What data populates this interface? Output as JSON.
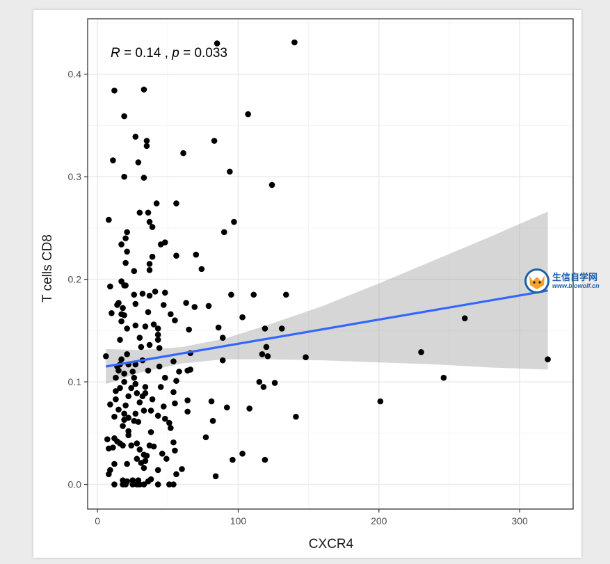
{
  "chart_data": {
    "type": "scatter",
    "xlabel": "CXCR4",
    "ylabel": "T cells CD8",
    "xlim": [
      -7,
      338
    ],
    "ylim": [
      -0.024,
      0.454
    ],
    "x_ticks": [
      0,
      100,
      200,
      300
    ],
    "y_ticks": [
      0.0,
      0.1,
      0.2,
      0.3,
      0.4
    ],
    "x_tick_labels": [
      "0",
      "100",
      "200",
      "300"
    ],
    "y_tick_labels": [
      "0.0",
      "0.1",
      "0.2",
      "0.3",
      "0.4"
    ],
    "grid": true,
    "annotation": {
      "r_symbol": "R",
      "r_text": " = 0.14 , ",
      "p_symbol": "p",
      "p_text": " = 0.033"
    },
    "regression": {
      "x": [
        6,
        320
      ],
      "y": [
        0.115,
        0.189
      ],
      "ci_lower": [
        0.098,
        0.112
      ],
      "ci_upper": [
        0.132,
        0.266
      ],
      "ci_x": [
        6,
        30,
        60,
        90,
        120,
        160,
        200,
        240,
        280,
        320
      ],
      "ci_upper_curve": [
        0.132,
        0.131,
        0.134,
        0.142,
        0.155,
        0.174,
        0.196,
        0.219,
        0.242,
        0.266
      ],
      "ci_lower_curve": [
        0.098,
        0.109,
        0.118,
        0.122,
        0.122,
        0.121,
        0.119,
        0.117,
        0.114,
        0.112
      ]
    },
    "colors": {
      "line": "#3366ff",
      "ribbon": "#999999",
      "point": "#000000",
      "grid_major": "#ebebeb",
      "grid_minor": "#f5f5f5"
    },
    "points": [
      [
        140,
        0.431
      ],
      [
        85,
        0.43
      ],
      [
        12,
        0.384
      ],
      [
        33,
        0.385
      ],
      [
        107,
        0.361
      ],
      [
        19,
        0.359
      ],
      [
        27,
        0.339
      ],
      [
        35,
        0.335
      ],
      [
        35,
        0.33
      ],
      [
        83,
        0.335
      ],
      [
        61,
        0.323
      ],
      [
        11,
        0.316
      ],
      [
        29,
        0.314
      ],
      [
        94,
        0.305
      ],
      [
        19,
        0.3
      ],
      [
        33,
        0.299
      ],
      [
        124,
        0.292
      ],
      [
        42,
        0.274
      ],
      [
        56,
        0.274
      ],
      [
        30,
        0.265
      ],
      [
        36,
        0.265
      ],
      [
        8,
        0.258
      ],
      [
        37,
        0.256
      ],
      [
        97,
        0.256
      ],
      [
        39,
        0.251
      ],
      [
        21,
        0.246
      ],
      [
        90,
        0.246
      ],
      [
        20,
        0.24
      ],
      [
        48,
        0.236
      ],
      [
        17,
        0.234
      ],
      [
        45,
        0.234
      ],
      [
        21,
        0.227
      ],
      [
        56,
        0.223
      ],
      [
        70,
        0.224
      ],
      [
        39,
        0.222
      ],
      [
        20,
        0.216
      ],
      [
        37,
        0.215
      ],
      [
        74,
        0.21
      ],
      [
        37,
        0.209
      ],
      [
        26,
        0.208
      ],
      [
        17,
        0.198
      ],
      [
        19,
        0.194
      ],
      [
        20,
        0.194
      ],
      [
        9,
        0.193
      ],
      [
        48,
        0.187
      ],
      [
        26,
        0.185
      ],
      [
        41,
        0.188
      ],
      [
        32,
        0.186
      ],
      [
        37,
        0.184
      ],
      [
        95,
        0.185
      ],
      [
        111,
        0.185
      ],
      [
        134,
        0.185
      ],
      [
        15,
        0.177
      ],
      [
        27,
        0.176
      ],
      [
        14,
        0.175
      ],
      [
        18,
        0.172
      ],
      [
        47,
        0.175
      ],
      [
        63,
        0.177
      ],
      [
        69,
        0.173
      ],
      [
        79,
        0.174
      ],
      [
        17,
        0.166
      ],
      [
        19,
        0.165
      ],
      [
        10,
        0.167
      ],
      [
        36,
        0.168
      ],
      [
        52,
        0.166
      ],
      [
        17,
        0.159
      ],
      [
        27,
        0.155
      ],
      [
        40,
        0.156
      ],
      [
        103,
        0.163
      ],
      [
        34,
        0.154
      ],
      [
        43,
        0.152
      ],
      [
        55,
        0.16
      ],
      [
        21,
        0.152
      ],
      [
        65,
        0.151
      ],
      [
        86,
        0.153
      ],
      [
        119,
        0.152
      ],
      [
        131,
        0.152
      ],
      [
        43,
        0.146
      ],
      [
        16,
        0.141
      ],
      [
        30,
        0.143
      ],
      [
        43,
        0.141
      ],
      [
        37,
        0.136
      ],
      [
        89,
        0.143
      ],
      [
        31,
        0.134
      ],
      [
        44,
        0.133
      ],
      [
        120,
        0.134
      ],
      [
        21,
        0.127
      ],
      [
        66,
        0.128
      ],
      [
        17,
        0.122
      ],
      [
        32,
        0.121
      ],
      [
        22,
        0.117
      ],
      [
        54,
        0.12
      ],
      [
        117,
        0.127
      ],
      [
        121,
        0.125
      ],
      [
        89,
        0.121
      ],
      [
        148,
        0.124
      ],
      [
        6,
        0.125
      ],
      [
        230,
        0.129
      ],
      [
        261,
        0.162
      ],
      [
        320,
        0.122
      ],
      [
        14,
        0.115
      ],
      [
        16,
        0.117
      ],
      [
        27,
        0.117
      ],
      [
        44,
        0.115
      ],
      [
        36,
        0.111
      ],
      [
        15,
        0.111
      ],
      [
        19,
        0.108
      ],
      [
        25,
        0.11
      ],
      [
        58,
        0.11
      ],
      [
        64,
        0.111
      ],
      [
        13,
        0.104
      ],
      [
        26,
        0.104
      ],
      [
        48,
        0.104
      ],
      [
        66,
        0.112
      ],
      [
        19,
        0.1
      ],
      [
        27,
        0.098
      ],
      [
        56,
        0.101
      ],
      [
        115,
        0.1
      ],
      [
        126,
        0.099
      ],
      [
        246,
        0.104
      ],
      [
        16,
        0.094
      ],
      [
        24,
        0.094
      ],
      [
        34,
        0.095
      ],
      [
        45,
        0.095
      ],
      [
        118,
        0.095
      ],
      [
        13,
        0.091
      ],
      [
        28,
        0.089
      ],
      [
        34,
        0.089
      ],
      [
        54,
        0.09
      ],
      [
        22,
        0.086
      ],
      [
        32,
        0.086
      ],
      [
        13,
        0.083
      ],
      [
        39,
        0.083
      ],
      [
        64,
        0.082
      ],
      [
        81,
        0.081
      ],
      [
        30,
        0.08
      ],
      [
        9,
        0.078
      ],
      [
        20,
        0.077
      ],
      [
        55,
        0.079
      ],
      [
        92,
        0.075
      ],
      [
        47,
        0.076
      ],
      [
        108,
        0.074
      ],
      [
        201,
        0.081
      ],
      [
        15,
        0.073
      ],
      [
        33,
        0.072
      ],
      [
        38,
        0.072
      ],
      [
        64,
        0.071
      ],
      [
        19,
        0.069
      ],
      [
        27,
        0.069
      ],
      [
        43,
        0.067
      ],
      [
        82,
        0.062
      ],
      [
        141,
        0.066
      ],
      [
        12,
        0.066
      ],
      [
        22,
        0.065
      ],
      [
        48,
        0.064
      ],
      [
        19,
        0.063
      ],
      [
        26,
        0.062
      ],
      [
        29,
        0.061
      ],
      [
        51,
        0.06
      ],
      [
        18,
        0.057
      ],
      [
        52,
        0.055
      ],
      [
        22,
        0.052
      ],
      [
        38,
        0.051
      ],
      [
        22,
        0.048
      ],
      [
        77,
        0.046
      ],
      [
        12,
        0.045
      ],
      [
        14,
        0.042
      ],
      [
        16,
        0.04
      ],
      [
        28,
        0.04
      ],
      [
        54,
        0.041
      ],
      [
        7,
        0.044
      ],
      [
        18,
        0.038
      ],
      [
        24,
        0.038
      ],
      [
        37,
        0.038
      ],
      [
        40,
        0.037
      ],
      [
        11,
        0.036
      ],
      [
        8,
        0.035
      ],
      [
        30,
        0.034
      ],
      [
        55,
        0.033
      ],
      [
        46,
        0.03
      ],
      [
        33,
        0.029
      ],
      [
        35,
        0.028
      ],
      [
        96,
        0.024
      ],
      [
        103,
        0.03
      ],
      [
        119,
        0.024
      ],
      [
        28,
        0.025
      ],
      [
        34,
        0.023
      ],
      [
        31,
        0.021
      ],
      [
        49,
        0.025
      ],
      [
        21,
        0.02
      ],
      [
        12,
        0.02
      ],
      [
        9,
        0.014
      ],
      [
        33,
        0.016
      ],
      [
        60,
        0.015
      ],
      [
        8,
        0.01
      ],
      [
        43,
        0.014
      ],
      [
        56,
        0.01
      ],
      [
        84,
        0.008
      ],
      [
        18,
        0.004
      ],
      [
        21,
        0.003
      ],
      [
        25,
        0.004
      ],
      [
        29,
        0.004
      ],
      [
        36,
        0.003
      ],
      [
        38,
        0.005
      ],
      [
        12,
        0.0
      ],
      [
        18,
        0.0
      ],
      [
        20,
        0.0
      ],
      [
        25,
        0.0
      ],
      [
        28,
        0.0
      ],
      [
        30,
        0.0
      ],
      [
        33,
        0.0
      ],
      [
        43,
        0.0
      ],
      [
        51,
        0.0
      ],
      [
        54,
        0.0
      ]
    ]
  },
  "watermark": {
    "main": "生信自学网",
    "sub": "www.biowolf.cn"
  }
}
